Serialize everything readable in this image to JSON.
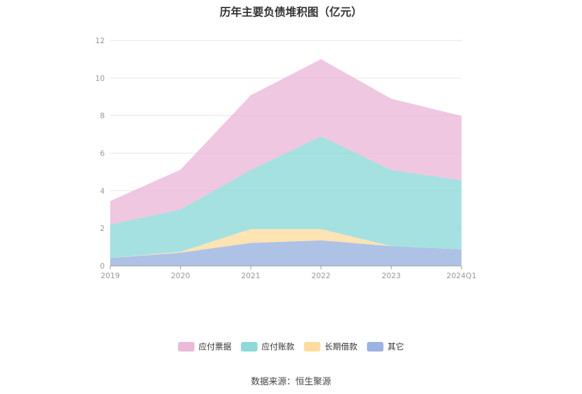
{
  "chart_data": {
    "type": "area",
    "title": "历年主要负债堆积图（亿元）",
    "categories": [
      "2019",
      "2020",
      "2021",
      "2022",
      "2023",
      "2024Q1"
    ],
    "ylim": [
      0,
      12
    ],
    "yticks": [
      0,
      2,
      4,
      6,
      8,
      10,
      12
    ],
    "stacked": true,
    "grid": true,
    "legend_position": "bottom",
    "series": [
      {
        "name": "其它",
        "color": "#9ab3e0",
        "values": [
          0.42,
          0.7,
          1.22,
          1.36,
          1.05,
          0.88
        ]
      },
      {
        "name": "长期借款",
        "color": "#fedca0",
        "values": [
          0.0,
          0.05,
          0.74,
          0.6,
          0.0,
          0.0
        ]
      },
      {
        "name": "应付账款",
        "color": "#8ed9d9",
        "values": [
          1.78,
          2.25,
          3.14,
          4.94,
          4.05,
          3.67
        ]
      },
      {
        "name": "应付票据",
        "color": "#ebb9da",
        "values": [
          1.25,
          2.12,
          3.98,
          4.1,
          3.8,
          3.43
        ]
      }
    ],
    "legend_order": [
      "应付票据",
      "应付账款",
      "长期借款",
      "其它"
    ]
  },
  "source": "数据来源：恒生聚源"
}
